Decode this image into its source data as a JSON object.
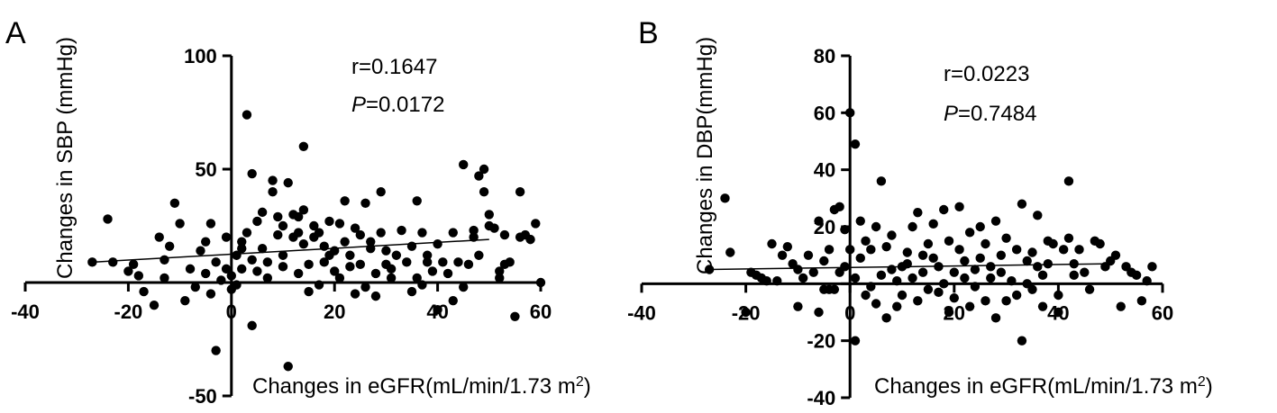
{
  "chart_data": [
    {
      "type": "scatter",
      "panel_label": "A",
      "xlabel": "Changes in eGFR(mL/min/1.73 m",
      "xlabel_sup": "2",
      "xlabel_end": ")",
      "ylabel": "Changes in SBP (mmHg)",
      "xlim": [
        -40,
        60
      ],
      "ylim": [
        -50,
        100
      ],
      "xticks": [
        -40,
        -20,
        0,
        20,
        40,
        60
      ],
      "xtick_labels": [
        "-40",
        "-20",
        "0",
        "20",
        "40",
        "60"
      ],
      "yticks": [
        -50,
        0,
        50,
        100
      ],
      "ytick_labels": [
        "-50",
        "",
        "50",
        "100"
      ],
      "grid": false,
      "stats": {
        "r_text": "r=0.1647",
        "p_label": "P",
        "p_value": "=0.0172"
      },
      "trendline": {
        "x": [
          -27,
          50
        ],
        "y": [
          9,
          19
        ]
      },
      "points": [
        [
          -27,
          9
        ],
        [
          -24,
          28
        ],
        [
          -23,
          9
        ],
        [
          -20,
          5
        ],
        [
          -19,
          8
        ],
        [
          -18,
          3
        ],
        [
          -17,
          -4
        ],
        [
          -15,
          -10
        ],
        [
          -14,
          20
        ],
        [
          -13,
          10
        ],
        [
          -13,
          2
        ],
        [
          -12,
          16
        ],
        [
          -11,
          35
        ],
        [
          -10,
          26
        ],
        [
          -9,
          -8
        ],
        [
          -8,
          6
        ],
        [
          -7,
          -2
        ],
        [
          -6,
          14
        ],
        [
          -5,
          18
        ],
        [
          -5,
          4
        ],
        [
          -4,
          26
        ],
        [
          -4,
          -5
        ],
        [
          -3,
          9
        ],
        [
          -3,
          -30
        ],
        [
          -2,
          1
        ],
        [
          -1,
          20
        ],
        [
          -1,
          6
        ],
        [
          0,
          3
        ],
        [
          0,
          -3
        ],
        [
          1,
          12
        ],
        [
          1,
          -1
        ],
        [
          2,
          18
        ],
        [
          2,
          6
        ],
        [
          2,
          15
        ],
        [
          3,
          74
        ],
        [
          3,
          22
        ],
        [
          4,
          10
        ],
        [
          4,
          -19
        ],
        [
          4,
          48
        ],
        [
          5,
          27
        ],
        [
          5,
          5
        ],
        [
          6,
          31
        ],
        [
          6,
          15
        ],
        [
          7,
          2
        ],
        [
          7,
          9
        ],
        [
          8,
          45
        ],
        [
          8,
          40
        ],
        [
          9,
          21
        ],
        [
          9,
          29
        ],
        [
          10,
          12
        ],
        [
          10,
          25
        ],
        [
          10,
          7
        ],
        [
          11,
          44
        ],
        [
          11,
          -37
        ],
        [
          12,
          30
        ],
        [
          12,
          20
        ],
        [
          13,
          29
        ],
        [
          13,
          22
        ],
        [
          13,
          4
        ],
        [
          14,
          60
        ],
        [
          14,
          32
        ],
        [
          14,
          17
        ],
        [
          15,
          8
        ],
        [
          15,
          -4
        ],
        [
          16,
          25
        ],
        [
          16,
          20
        ],
        [
          17,
          22
        ],
        [
          17,
          -1
        ],
        [
          18,
          16
        ],
        [
          18,
          9
        ],
        [
          19,
          12
        ],
        [
          19,
          27
        ],
        [
          20,
          5
        ],
        [
          20,
          14
        ],
        [
          21,
          26
        ],
        [
          21,
          2
        ],
        [
          22,
          18
        ],
        [
          22,
          36
        ],
        [
          23,
          12
        ],
        [
          23,
          7
        ],
        [
          24,
          -5
        ],
        [
          24,
          24
        ],
        [
          25,
          21
        ],
        [
          25,
          8
        ],
        [
          26,
          -2
        ],
        [
          26,
          35
        ],
        [
          27,
          18
        ],
        [
          27,
          15
        ],
        [
          28,
          4
        ],
        [
          28,
          -6
        ],
        [
          29,
          22
        ],
        [
          29,
          40
        ],
        [
          30,
          14
        ],
        [
          30,
          8
        ],
        [
          31,
          6
        ],
        [
          31,
          2
        ],
        [
          32,
          12
        ],
        [
          33,
          23
        ],
        [
          34,
          9
        ],
        [
          35,
          16
        ],
        [
          35,
          -4
        ],
        [
          36,
          36
        ],
        [
          36,
          2
        ],
        [
          37,
          -1
        ],
        [
          37,
          22
        ],
        [
          38,
          12
        ],
        [
          38,
          9
        ],
        [
          39,
          5
        ],
        [
          40,
          17
        ],
        [
          40,
          -12
        ],
        [
          41,
          9
        ],
        [
          42,
          4
        ],
        [
          43,
          -8
        ],
        [
          43,
          22
        ],
        [
          44,
          9
        ],
        [
          45,
          52
        ],
        [
          45,
          -2
        ],
        [
          46,
          8
        ],
        [
          47,
          23
        ],
        [
          47,
          20
        ],
        [
          48,
          47
        ],
        [
          48,
          12
        ],
        [
          49,
          50
        ],
        [
          49,
          40
        ],
        [
          50,
          25
        ],
        [
          50,
          30
        ],
        [
          51,
          24
        ],
        [
          52,
          2
        ],
        [
          52,
          5
        ],
        [
          53,
          21
        ],
        [
          53,
          8
        ],
        [
          54,
          9
        ],
        [
          55,
          -15
        ],
        [
          56,
          20
        ],
        [
          56,
          40
        ],
        [
          57,
          21
        ],
        [
          58,
          19
        ],
        [
          59,
          26
        ],
        [
          60,
          0
        ]
      ]
    },
    {
      "type": "scatter",
      "panel_label": "B",
      "xlabel": "Changes in eGFR(mL/min/1.73 m",
      "xlabel_sup": "2",
      "xlabel_end": ")",
      "ylabel": "Changes in DBP(mmHg)",
      "xlim": [
        -40,
        60
      ],
      "ylim": [
        -40,
        80
      ],
      "xticks": [
        -40,
        -20,
        0,
        20,
        40,
        60
      ],
      "xtick_labels": [
        "-40",
        "-20",
        "0",
        "20",
        "40",
        "60"
      ],
      "yticks": [
        -40,
        -20,
        0,
        20,
        40,
        60,
        80
      ],
      "ytick_labels": [
        "-40",
        "-20",
        "",
        "20",
        "40",
        "60",
        "80"
      ],
      "grid": false,
      "stats": {
        "r_text": "r=0.0223",
        "p_label": "P",
        "p_value": "=0.7484"
      },
      "trendline": {
        "x": [
          -27,
          50
        ],
        "y": [
          5,
          7
        ]
      },
      "points": [
        [
          -27,
          5
        ],
        [
          -24,
          30
        ],
        [
          -23,
          11
        ],
        [
          -20,
          -10
        ],
        [
          -19,
          4
        ],
        [
          -18,
          3
        ],
        [
          -17,
          2
        ],
        [
          -16,
          1
        ],
        [
          -15,
          14
        ],
        [
          -14,
          1
        ],
        [
          -13,
          10
        ],
        [
          -12,
          13
        ],
        [
          -11,
          7
        ],
        [
          -10,
          -8
        ],
        [
          -10,
          5
        ],
        [
          -9,
          2
        ],
        [
          -8,
          10
        ],
        [
          -7,
          4
        ],
        [
          -6,
          22
        ],
        [
          -6,
          -10
        ],
        [
          -5,
          -2
        ],
        [
          -5,
          8
        ],
        [
          -4,
          12
        ],
        [
          -4,
          -2
        ],
        [
          -3,
          26
        ],
        [
          -3,
          -2
        ],
        [
          -2,
          27
        ],
        [
          -2,
          4
        ],
        [
          -1,
          19
        ],
        [
          -1,
          6
        ],
        [
          0,
          60
        ],
        [
          0,
          12
        ],
        [
          1,
          2
        ],
        [
          1,
          -20
        ],
        [
          1,
          49
        ],
        [
          2,
          9
        ],
        [
          2,
          22
        ],
        [
          3,
          15
        ],
        [
          3,
          -4
        ],
        [
          4,
          12
        ],
        [
          4,
          -1
        ],
        [
          5,
          -7
        ],
        [
          5,
          20
        ],
        [
          6,
          36
        ],
        [
          6,
          3
        ],
        [
          7,
          -12
        ],
        [
          7,
          13
        ],
        [
          8,
          5
        ],
        [
          8,
          17
        ],
        [
          9,
          1
        ],
        [
          9,
          -8
        ],
        [
          10,
          6
        ],
        [
          10,
          -4
        ],
        [
          11,
          11
        ],
        [
          11,
          7
        ],
        [
          12,
          20
        ],
        [
          12,
          2
        ],
        [
          13,
          25
        ],
        [
          13,
          -6
        ],
        [
          14,
          10
        ],
        [
          14,
          4
        ],
        [
          15,
          -2
        ],
        [
          15,
          14
        ],
        [
          16,
          9
        ],
        [
          16,
          21
        ],
        [
          17,
          -3
        ],
        [
          17,
          6
        ],
        [
          18,
          26
        ],
        [
          18,
          0
        ],
        [
          19,
          15
        ],
        [
          19,
          -10
        ],
        [
          20,
          4
        ],
        [
          20,
          -5
        ],
        [
          21,
          12
        ],
        [
          21,
          27
        ],
        [
          22,
          8
        ],
        [
          22,
          2
        ],
        [
          23,
          -8
        ],
        [
          23,
          18
        ],
        [
          24,
          5
        ],
        [
          24,
          -1
        ],
        [
          25,
          9
        ],
        [
          25,
          20
        ],
        [
          26,
          -6
        ],
        [
          26,
          14
        ],
        [
          27,
          6
        ],
        [
          27,
          2
        ],
        [
          28,
          22
        ],
        [
          28,
          -12
        ],
        [
          29,
          10
        ],
        [
          29,
          4
        ],
        [
          30,
          -6
        ],
        [
          30,
          16
        ],
        [
          31,
          1
        ],
        [
          32,
          -4
        ],
        [
          32,
          12
        ],
        [
          33,
          -20
        ],
        [
          33,
          28
        ],
        [
          34,
          0
        ],
        [
          34,
          8
        ],
        [
          35,
          11
        ],
        [
          35,
          -2
        ],
        [
          36,
          24
        ],
        [
          36,
          6
        ],
        [
          37,
          -8
        ],
        [
          37,
          3
        ],
        [
          38,
          7
        ],
        [
          38,
          15
        ],
        [
          39,
          14
        ],
        [
          40,
          -4
        ],
        [
          40,
          -10
        ],
        [
          41,
          12
        ],
        [
          42,
          16
        ],
        [
          42,
          36
        ],
        [
          43,
          7
        ],
        [
          43,
          3
        ],
        [
          44,
          12
        ],
        [
          45,
          4
        ],
        [
          46,
          -2
        ],
        [
          47,
          15
        ],
        [
          48,
          14
        ],
        [
          49,
          6
        ],
        [
          50,
          8
        ],
        [
          51,
          10
        ],
        [
          52,
          -8
        ],
        [
          53,
          6
        ],
        [
          54,
          4
        ],
        [
          55,
          3
        ],
        [
          56,
          -6
        ],
        [
          57,
          1
        ],
        [
          58,
          6
        ]
      ]
    }
  ]
}
